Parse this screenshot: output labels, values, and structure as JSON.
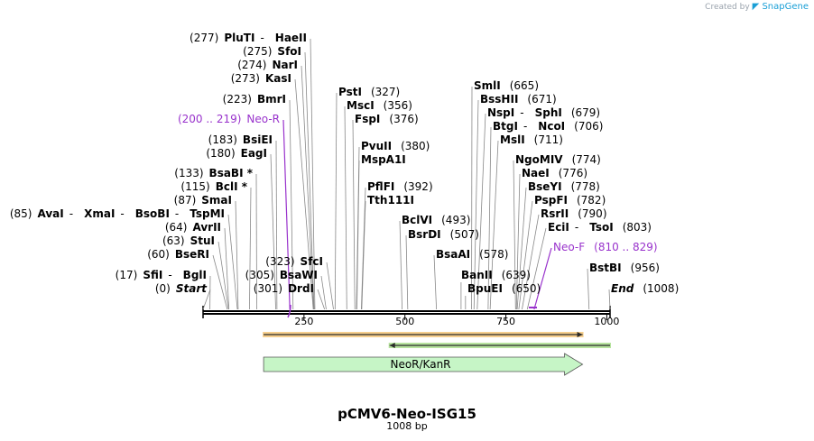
{
  "credit": {
    "prefix": "Created by",
    "brand": "SnapGene"
  },
  "plasmid": {
    "name": "pCMV6-Neo-ISG15",
    "length_label": "1008 bp",
    "length": 1008
  },
  "axis": {
    "ticks": [
      250,
      500,
      750,
      1000
    ]
  },
  "left_labels": [
    {
      "pos": "(277)",
      "names": [
        "PluTI",
        "HaeII"
      ],
      "cut": 277
    },
    {
      "pos": "(275)",
      "names": [
        "SfoI"
      ],
      "cut": 275
    },
    {
      "pos": "(274)",
      "names": [
        "NarI"
      ],
      "cut": 274
    },
    {
      "pos": "(273)",
      "names": [
        "KasI"
      ],
      "cut": 273
    },
    {
      "pos": "(223)",
      "names": [
        "BmrI"
      ],
      "cut": 223
    },
    {
      "pos": "(200 .. 219)",
      "names": [
        "Neo-R"
      ],
      "primer": true,
      "cut": 215
    },
    {
      "pos": "(183)",
      "names": [
        "BsiEI"
      ],
      "cut": 183
    },
    {
      "pos": "(180)",
      "names": [
        "EagI"
      ],
      "cut": 180
    },
    {
      "pos": "(133)",
      "names": [
        "BsaBI *"
      ],
      "cut": 133
    },
    {
      "pos": "(115)",
      "names": [
        "BclI *"
      ],
      "cut": 115
    },
    {
      "pos": "(87)",
      "names": [
        "SmaI"
      ],
      "cut": 87
    },
    {
      "pos": "(85)",
      "names": [
        "AvaI",
        "XmaI",
        "BsoBI",
        "TspMI"
      ],
      "cut": 85
    },
    {
      "pos": "(64)",
      "names": [
        "AvrII"
      ],
      "cut": 64
    },
    {
      "pos": "(63)",
      "names": [
        "StuI"
      ],
      "cut": 63
    },
    {
      "pos": "(60)",
      "names": [
        "BseRI"
      ],
      "cut": 60
    },
    {
      "pos": "(17)",
      "names": [
        "SfiI",
        "BglI"
      ],
      "cut": 17
    },
    {
      "pos": "(0)",
      "names": [
        "Start"
      ],
      "italic": true,
      "cut": 0
    },
    {
      "pos": "(323)",
      "names": [
        "SfcI"
      ],
      "cut": 323
    },
    {
      "pos": "(305)",
      "names": [
        "BsaWI"
      ],
      "cut": 305
    },
    {
      "pos": "(301)",
      "names": [
        "DrdI"
      ],
      "cut": 301
    }
  ],
  "right_labels": [
    {
      "names": [
        "PstI"
      ],
      "pos": "(327)",
      "cut": 327
    },
    {
      "names": [
        "MscI"
      ],
      "pos": "(356)",
      "cut": 356
    },
    {
      "names": [
        "FspI"
      ],
      "pos": "(376)",
      "cut": 376
    },
    {
      "names": [
        "PvuII"
      ],
      "pos": "(380)",
      "cut": 380
    },
    {
      "names": [
        "MspA1I"
      ],
      "pos": "",
      "cut": 381
    },
    {
      "names": [
        "PflFI"
      ],
      "pos": "(392)",
      "cut": 392
    },
    {
      "names": [
        "Tth111I"
      ],
      "pos": "",
      "cut": 393
    },
    {
      "names": [
        "BclVI"
      ],
      "pos": "(493)",
      "cut": 493
    },
    {
      "names": [
        "BsrDI"
      ],
      "pos": "(507)",
      "cut": 507
    },
    {
      "names": [
        "BsaAI"
      ],
      "pos": "(578)",
      "cut": 578
    },
    {
      "names": [
        "SmlI"
      ],
      "pos": "(665)",
      "cut": 665
    },
    {
      "names": [
        "BssHII"
      ],
      "pos": "(671)",
      "cut": 671
    },
    {
      "names": [
        "NspI",
        "SphI"
      ],
      "pos": "(679)",
      "cut": 679
    },
    {
      "names": [
        "BtgI",
        "NcoI"
      ],
      "pos": "(706)",
      "cut": 706
    },
    {
      "names": [
        "MslI"
      ],
      "pos": "(711)",
      "cut": 711
    },
    {
      "names": [
        "NgoMIV"
      ],
      "pos": "(774)",
      "cut": 774
    },
    {
      "names": [
        "NaeI"
      ],
      "pos": "(776)",
      "cut": 776
    },
    {
      "names": [
        "BseYI"
      ],
      "pos": "(778)",
      "cut": 778
    },
    {
      "names": [
        "PspFI"
      ],
      "pos": "(782)",
      "cut": 782
    },
    {
      "names": [
        "RsrII"
      ],
      "pos": "(790)",
      "cut": 790
    },
    {
      "names": [
        "EciI",
        "TsoI"
      ],
      "pos": "(803)",
      "cut": 803
    },
    {
      "names": [
        "Neo-F"
      ],
      "pos": "(810 .. 829)",
      "primer": true,
      "cut": 820
    },
    {
      "names": [
        "BstBI"
      ],
      "pos": "(956)",
      "cut": 956
    },
    {
      "names": [
        "End"
      ],
      "pos": "(1008)",
      "italic": true,
      "cut": 1008
    }
  ],
  "mid_labels": [
    {
      "pos": "(639)",
      "names": [
        "BanII"
      ],
      "cut": 639
    },
    {
      "pos": "(650)",
      "names": [
        "BpuEI"
      ],
      "cut": 650
    }
  ],
  "features": [
    {
      "name": "",
      "start": 150,
      "end": 940,
      "direction": "forward",
      "color": "#f0a830",
      "kind": "bar"
    },
    {
      "name": "",
      "start": 462,
      "end": 1008,
      "direction": "reverse",
      "color": "#7ccc50",
      "kind": "bar"
    },
    {
      "name": "NeoR/KanR",
      "start": 150,
      "end": 940,
      "direction": "forward",
      "color": "#c6f5c6",
      "kind": "arrow"
    }
  ]
}
